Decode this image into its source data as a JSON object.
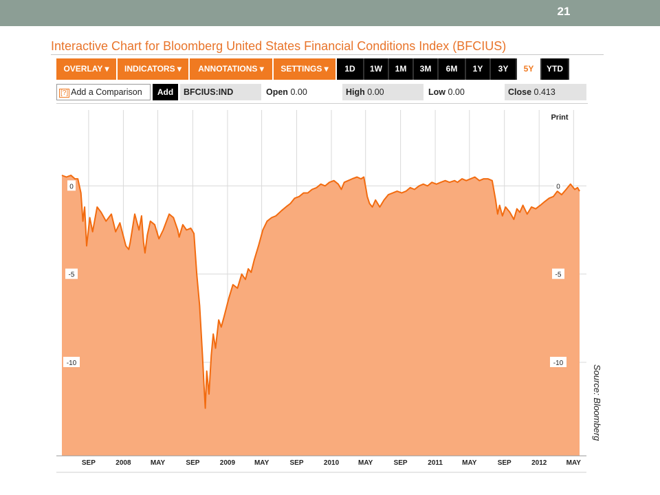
{
  "slide": {
    "number": "21"
  },
  "header": {
    "title": "Interactive Chart for Bloomberg United States Financial Conditions Index (BFCIUS)"
  },
  "toolbar": {
    "menus": [
      "OVERLAY ▾",
      "INDICATORS ▾",
      "ANNOTATIONS ▾",
      "SETTINGS ▾"
    ],
    "ranges": [
      "1D",
      "1W",
      "1M",
      "3M",
      "6M",
      "1Y",
      "3Y",
      "5Y",
      "YTD"
    ],
    "active_range": "5Y"
  },
  "infobar": {
    "compare_icon": "[?]",
    "compare_label": "Add a Comparison",
    "add_label": "Add",
    "ticker": "BFCIUS:IND",
    "open_label": "Open",
    "open_value": "0.00",
    "high_label": "High",
    "high_value": "0.00",
    "low_label": "Low",
    "low_value": "0.00",
    "close_label": "Close",
    "close_value": "0.413"
  },
  "print_label": "Print",
  "source": "Source: Bloomberg",
  "colors": {
    "accent": "#f07a21",
    "area_fill": "#f9ab7c",
    "line": "#f26b0f",
    "band": "#8c9e95"
  },
  "chart_data": {
    "type": "area",
    "title": "Interactive Chart for Bloomberg United States Financial Conditions Index (BFCIUS)",
    "xlabel": "",
    "ylabel": "",
    "x_ticks": [
      "SEP",
      "2008",
      "MAY",
      "SEP",
      "2009",
      "MAY",
      "SEP",
      "2010",
      "MAY",
      "SEP",
      "2011",
      "MAY",
      "SEP",
      "2012",
      "MAY"
    ],
    "y_ticks": [
      0,
      -5,
      -10
    ],
    "ylim": [
      -15.3,
      4.3
    ],
    "grid": true,
    "series": [
      {
        "x": [
          "2007-05-30",
          "2007-06-15",
          "2007-07-01",
          "2007-07-15",
          "2007-07-25",
          "2007-08-05",
          "2007-08-12",
          "2007-08-18",
          "2007-08-25",
          "2007-09-05",
          "2007-09-15",
          "2007-10-01",
          "2007-10-15",
          "2007-11-01",
          "2007-11-20",
          "2007-12-05",
          "2007-12-20",
          "2008-01-10",
          "2008-01-20",
          "2008-01-25",
          "2008-02-10",
          "2008-02-25",
          "2008-03-05",
          "2008-03-12",
          "2008-03-17",
          "2008-03-25",
          "2008-04-05",
          "2008-04-20",
          "2008-05-05",
          "2008-05-20",
          "2008-06-10",
          "2008-06-25",
          "2008-07-10",
          "2008-07-15",
          "2008-07-28",
          "2008-08-10",
          "2008-08-25",
          "2008-09-05",
          "2008-09-15",
          "2008-09-25",
          "2008-10-05",
          "2008-10-10",
          "2008-10-15",
          "2008-10-20",
          "2008-10-28",
          "2008-11-05",
          "2008-11-12",
          "2008-11-20",
          "2008-12-01",
          "2008-12-10",
          "2008-12-20",
          "2009-01-05",
          "2009-01-20",
          "2009-02-05",
          "2009-02-20",
          "2009-03-05",
          "2009-03-15",
          "2009-03-25",
          "2009-04-05",
          "2009-04-20",
          "2009-05-05",
          "2009-05-20",
          "2009-06-05",
          "2009-06-20",
          "2009-07-10",
          "2009-07-25",
          "2009-08-10",
          "2009-08-25",
          "2009-09-10",
          "2009-09-25",
          "2009-10-10",
          "2009-10-25",
          "2009-11-10",
          "2009-11-25",
          "2009-12-10",
          "2009-12-25",
          "2010-01-10",
          "2010-01-25",
          "2010-02-05",
          "2010-02-15",
          "2010-03-01",
          "2010-03-15",
          "2010-04-01",
          "2010-04-15",
          "2010-04-25",
          "2010-05-03",
          "2010-05-07",
          "2010-05-15",
          "2010-05-25",
          "2010-06-05",
          "2010-06-20",
          "2010-07-05",
          "2010-07-20",
          "2010-08-05",
          "2010-08-20",
          "2010-09-05",
          "2010-09-20",
          "2010-10-05",
          "2010-10-20",
          "2010-11-05",
          "2010-11-20",
          "2010-12-05",
          "2010-12-20",
          "2011-01-05",
          "2011-01-20",
          "2011-02-05",
          "2011-02-20",
          "2011-03-10",
          "2011-03-20",
          "2011-04-05",
          "2011-04-20",
          "2011-05-05",
          "2011-05-20",
          "2011-06-05",
          "2011-06-20",
          "2011-07-05",
          "2011-07-20",
          "2011-08-01",
          "2011-08-08",
          "2011-08-15",
          "2011-08-25",
          "2011-09-05",
          "2011-09-20",
          "2011-10-04",
          "2011-10-15",
          "2011-10-25",
          "2011-11-05",
          "2011-11-20",
          "2011-12-05",
          "2011-12-20",
          "2012-01-05",
          "2012-01-20",
          "2012-02-05",
          "2012-02-20",
          "2012-03-05",
          "2012-03-20",
          "2012-04-05",
          "2012-04-20",
          "2012-05-05",
          "2012-05-15",
          "2012-05-22"
        ],
        "y": [
          0.6,
          0.5,
          0.6,
          0.4,
          0.4,
          -0.4,
          -2.0,
          -1.2,
          -3.4,
          -1.8,
          -2.6,
          -1.2,
          -1.5,
          -2.0,
          -1.6,
          -2.6,
          -2.1,
          -3.4,
          -3.6,
          -3.2,
          -1.6,
          -2.5,
          -1.7,
          -3.2,
          -3.8,
          -2.8,
          -2.0,
          -2.2,
          -3.0,
          -2.5,
          -1.6,
          -1.8,
          -2.5,
          -2.9,
          -2.2,
          -2.5,
          -2.4,
          -2.7,
          -5.0,
          -6.8,
          -9.6,
          -11.2,
          -12.6,
          -10.5,
          -11.8,
          -9.6,
          -8.4,
          -9.2,
          -7.6,
          -8.0,
          -7.4,
          -6.4,
          -5.6,
          -5.8,
          -5.0,
          -5.3,
          -4.7,
          -4.9,
          -4.2,
          -3.4,
          -2.5,
          -2.0,
          -1.8,
          -1.7,
          -1.4,
          -1.2,
          -1.0,
          -0.7,
          -0.6,
          -0.4,
          -0.4,
          -0.2,
          -0.1,
          0.1,
          0.0,
          0.2,
          0.3,
          0.1,
          -0.2,
          0.2,
          0.3,
          0.4,
          0.5,
          0.4,
          0.5,
          -0.2,
          -0.6,
          -1.0,
          -1.2,
          -0.8,
          -1.2,
          -0.8,
          -0.5,
          -0.4,
          -0.3,
          -0.4,
          -0.3,
          -0.1,
          -0.2,
          0.0,
          0.1,
          0.0,
          0.2,
          0.1,
          0.2,
          0.3,
          0.2,
          0.3,
          0.2,
          0.4,
          0.3,
          0.4,
          0.5,
          0.3,
          0.4,
          0.4,
          0.3,
          -0.8,
          -1.6,
          -1.1,
          -1.7,
          -1.2,
          -1.5,
          -1.9,
          -1.3,
          -1.5,
          -1.1,
          -1.6,
          -1.2,
          -1.3,
          -1.1,
          -0.9,
          -0.7,
          -0.6,
          -0.3,
          -0.5,
          -0.2,
          0.1,
          -0.2,
          -0.1,
          -0.3
        ]
      }
    ]
  }
}
